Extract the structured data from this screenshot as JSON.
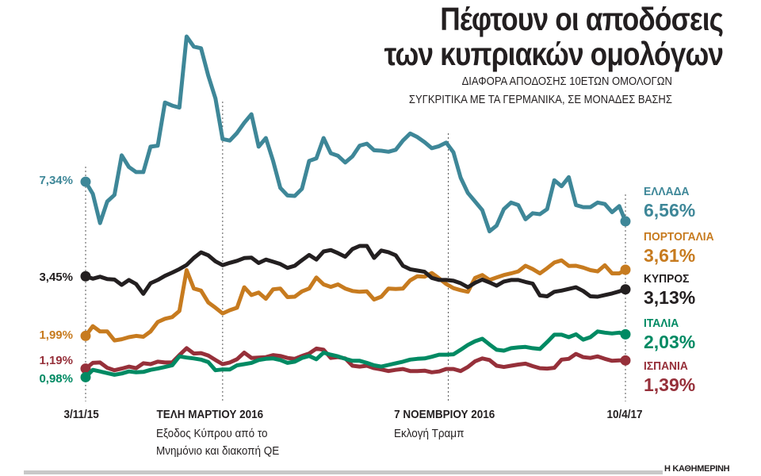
{
  "chart_data": {
    "type": "line",
    "title": "Πέφτουν οι αποδόσεις των κυπριακών ομολόγων",
    "title_lines": [
      "Πέφτουν οι αποδόσεις",
      "των κυπριακών ομολόγων"
    ],
    "subtitle_lines": [
      "ΔΙΑΦΟΡΑ ΑΠΟΔΟΣΗΣ 10ΕΤΩΝ ΟΜΟΛΟΓΩΝ",
      "ΣΥΓΚΡΙΤΙΚΑ ΜΕ ΤΑ ΓΕΡΜΑΝΙΚΑ, ΣΕ ΜΟΝΑΔΕΣ ΒΑΣΗΣ"
    ],
    "unit": "%",
    "grid": false,
    "legend": "right (end labels)",
    "x": [
      "2015-11-03",
      "2015-11-10",
      "2015-11-17",
      "2015-11-24",
      "2015-12-01",
      "2015-12-08",
      "2015-12-15",
      "2015-12-22",
      "2015-12-29",
      "2016-01-05",
      "2016-01-12",
      "2016-01-19",
      "2016-01-26",
      "2016-02-02",
      "2016-02-09",
      "2016-02-16",
      "2016-02-23",
      "2016-03-01",
      "2016-03-08",
      "2016-03-15",
      "2016-03-22",
      "2016-03-29",
      "2016-04-05",
      "2016-04-12",
      "2016-04-19",
      "2016-04-26",
      "2016-05-03",
      "2016-05-10",
      "2016-05-17",
      "2016-05-24",
      "2016-05-31",
      "2016-06-07",
      "2016-06-14",
      "2016-06-21",
      "2016-06-28",
      "2016-07-05",
      "2016-07-12",
      "2016-07-19",
      "2016-07-26",
      "2016-08-02",
      "2016-08-09",
      "2016-08-16",
      "2016-08-23",
      "2016-08-30",
      "2016-09-06",
      "2016-09-13",
      "2016-09-20",
      "2016-09-27",
      "2016-10-04",
      "2016-10-11",
      "2016-10-18",
      "2016-10-25",
      "2016-11-01",
      "2016-11-08",
      "2016-11-15",
      "2016-11-22",
      "2016-11-29",
      "2016-12-06",
      "2016-12-13",
      "2016-12-20",
      "2016-12-27",
      "2017-01-03",
      "2017-01-10",
      "2017-01-17",
      "2017-01-24",
      "2017-01-31",
      "2017-02-07",
      "2017-02-14",
      "2017-02-21",
      "2017-02-28",
      "2017-03-07",
      "2017-03-14",
      "2017-03-21",
      "2017-03-28",
      "2017-04-04",
      "2017-04-10"
    ],
    "x_ticks": [
      {
        "date": "2015-11-03",
        "label": "3/11/15",
        "note": []
      },
      {
        "date": "2016-03-15",
        "label": "ΤΕΛΗ ΜΑΡΤΙΟΥ 2016",
        "note": [
          "Εξοδος Κύπρου από το",
          "Μνημόνιο και διακοπή QE"
        ]
      },
      {
        "date": "2016-10-20",
        "label": "7 ΝΟΕΜΒΡΙΟΥ 2016",
        "note": [
          "Εκλογή Τραμπ"
        ]
      },
      {
        "date": "2017-04-10",
        "label": "10/4/17",
        "note": []
      }
    ],
    "series": [
      {
        "name": "ΕΛΛΑΔΑ",
        "color": "#3e8798",
        "start_label": "7,34%",
        "end_label": "6,56%",
        "values": [
          7.34,
          7.1,
          6.45,
          6.95,
          7.08,
          7.86,
          7.63,
          7.53,
          7.53,
          8.03,
          8.05,
          8.9,
          8.84,
          8.8,
          10.2,
          10.0,
          9.97,
          9.43,
          8.98,
          8.18,
          8.15,
          8.3,
          8.5,
          8.67,
          8.03,
          8.2,
          7.75,
          7.22,
          7.07,
          7.06,
          7.2,
          7.75,
          7.8,
          8.2,
          7.9,
          7.85,
          7.72,
          7.84,
          8.05,
          8.09,
          7.96,
          7.95,
          7.93,
          7.97,
          8.15,
          8.29,
          8.22,
          8.12,
          8.0,
          8.04,
          8.11,
          7.92,
          7.42,
          7.12,
          6.95,
          6.78,
          5.95,
          6.3,
          6.8,
          6.93,
          6.88,
          6.6,
          6.72,
          6.7,
          6.8,
          7.37,
          7.25,
          7.43,
          6.88,
          6.84,
          6.84,
          6.93,
          6.9,
          6.74,
          6.86,
          6.56
        ]
      },
      {
        "name": "ΠΟΡΤΟΓΑΛΙΑ",
        "color": "#c77b1f",
        "start_label": "1,99%",
        "end_label": "3,61%",
        "values": [
          1.99,
          2.23,
          2.1,
          2.1,
          1.88,
          1.91,
          1.96,
          1.99,
          1.97,
          2.1,
          2.33,
          2.41,
          2.45,
          2.6,
          3.6,
          3.15,
          3.1,
          2.81,
          2.68,
          2.54,
          2.62,
          2.68,
          3.18,
          2.99,
          3.05,
          2.9,
          3.13,
          3.15,
          2.94,
          2.95,
          3.08,
          3.15,
          3.42,
          3.25,
          3.19,
          3.25,
          3.15,
          3.09,
          3.07,
          3.08,
          2.88,
          2.95,
          3.15,
          3.14,
          3.15,
          3.35,
          3.45,
          3.44,
          3.53,
          3.4,
          3.26,
          3.16,
          3.11,
          3.07,
          3.41,
          3.48,
          3.36,
          3.42,
          3.48,
          3.52,
          3.57,
          3.85,
          3.65,
          3.52,
          3.7,
          4.05,
          4.18,
          3.84,
          3.85,
          3.74,
          3.6,
          3.57,
          3.88,
          3.52,
          3.52,
          3.61
        ]
      },
      {
        "name": "ΚΥΠΡΟΣ",
        "color": "#231f20",
        "start_label": "3,45%",
        "end_label": "3,13%",
        "values": [
          3.45,
          3.39,
          3.44,
          3.38,
          3.37,
          3.24,
          3.36,
          3.26,
          3.02,
          3.28,
          3.36,
          3.46,
          3.54,
          3.65,
          3.9,
          4.33,
          4.67,
          4.49,
          4.12,
          3.89,
          4.03,
          4.15,
          4.32,
          4.35,
          4.02,
          4.23,
          4.1,
          3.96,
          3.72,
          3.85,
          4.19,
          4.51,
          4.23,
          4.72,
          4.81,
          4.62,
          4.4,
          4.87,
          5.06,
          5.06,
          4.33,
          4.78,
          4.68,
          4.49,
          3.85,
          3.64,
          3.59,
          3.56,
          3.41,
          3.36,
          3.36,
          3.34,
          3.28,
          3.18,
          3.29,
          3.37,
          3.3,
          3.22,
          3.32,
          3.36,
          3.36,
          3.31,
          3.27,
          2.98,
          2.96,
          3.07,
          3.1,
          3.14,
          3.18,
          3.09,
          2.96,
          2.95,
          2.99,
          3.03,
          3.08,
          3.13
        ]
      },
      {
        "name": "ΙΤΑΛΙΑ",
        "color": "#008a63",
        "start_label": "0,98%",
        "end_label": "2,03%",
        "values": [
          0.98,
          1.16,
          1.12,
          1.08,
          1.04,
          1.07,
          1.12,
          1.1,
          1.11,
          1.16,
          1.19,
          1.23,
          1.27,
          1.49,
          1.46,
          1.44,
          1.41,
          1.35,
          1.15,
          1.17,
          1.17,
          1.27,
          1.3,
          1.33,
          1.4,
          1.43,
          1.44,
          1.4,
          1.33,
          1.36,
          1.45,
          1.5,
          1.42,
          1.58,
          1.53,
          1.49,
          1.43,
          1.38,
          1.38,
          1.33,
          1.27,
          1.24,
          1.28,
          1.32,
          1.36,
          1.41,
          1.43,
          1.44,
          1.48,
          1.53,
          1.53,
          1.54,
          1.65,
          1.77,
          1.86,
          1.92,
          1.78,
          1.65,
          1.63,
          1.69,
          1.71,
          1.72,
          1.69,
          1.67,
          1.84,
          2.02,
          2.02,
          1.96,
          2.03,
          1.9,
          1.96,
          2.1,
          2.07,
          2.05,
          2.07,
          2.03
        ]
      },
      {
        "name": "ΙΣΠΑΝΙΑ",
        "color": "#96303a",
        "start_label": "1,19%",
        "end_label": "1,39%",
        "values": [
          1.19,
          1.33,
          1.34,
          1.21,
          1.15,
          1.19,
          1.24,
          1.2,
          1.32,
          1.3,
          1.36,
          1.34,
          1.34,
          1.52,
          1.69,
          1.56,
          1.57,
          1.51,
          1.4,
          1.3,
          1.34,
          1.42,
          1.58,
          1.45,
          1.46,
          1.47,
          1.52,
          1.5,
          1.45,
          1.43,
          1.5,
          1.56,
          1.68,
          1.65,
          1.45,
          1.47,
          1.44,
          1.26,
          1.24,
          1.26,
          1.2,
          1.17,
          1.13,
          1.16,
          1.18,
          1.13,
          1.13,
          1.14,
          1.1,
          1.12,
          1.18,
          1.18,
          1.13,
          1.23,
          1.37,
          1.44,
          1.4,
          1.26,
          1.23,
          1.26,
          1.29,
          1.31,
          1.25,
          1.2,
          1.19,
          1.21,
          1.41,
          1.43,
          1.55,
          1.47,
          1.45,
          1.49,
          1.43,
          1.38,
          1.39,
          1.39
        ]
      }
    ]
  },
  "footer": {
    "brand": "Η ΚΑΘΗΜΕΡΙΝΗ"
  }
}
